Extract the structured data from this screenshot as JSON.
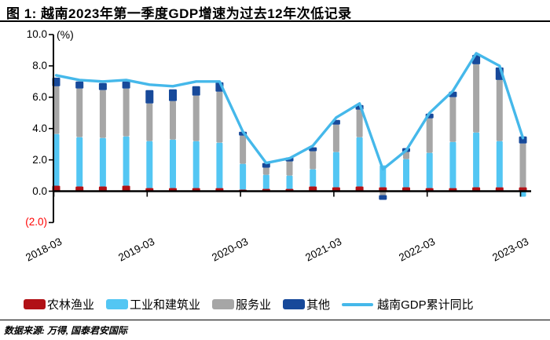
{
  "header": {
    "title": "图 1: 越南2023年第一季度GDP增速为过去12年次低记录"
  },
  "source": {
    "text": "数据来源: 万得, 国泰君安国际"
  },
  "chart_data": {
    "type": "bar",
    "subtype": "stacked-bars-with-overlay-line",
    "title": "图 1: 越南2023年第一季度GDP增速为过去12年次低记录",
    "unit_label": "(%)",
    "grid": false,
    "legend_position": "bottom",
    "ylim": [
      -2.0,
      10.0
    ],
    "categories": [
      "2018-03",
      "2018-06",
      "2018-09",
      "2018-12",
      "2019-03",
      "2019-06",
      "2019-09",
      "2019-12",
      "2020-03",
      "2020-06",
      "2020-09",
      "2020-12",
      "2021-03",
      "2021-06",
      "2021-09",
      "2021-12",
      "2022-03",
      "2022-06",
      "2022-09",
      "2022-12",
      "2023-03"
    ],
    "x_axis_tick_labels": [
      "2018-03",
      "2019-03",
      "2020-03",
      "2021-03",
      "2022-03",
      "2023-03"
    ],
    "x_axis_tick_indices": [
      0,
      4,
      8,
      12,
      16,
      20
    ],
    "yticks": [
      {
        "label": "10.0",
        "value": 10.0,
        "color": "#000000"
      },
      {
        "label": "8.0",
        "value": 8.0,
        "color": "#000000"
      },
      {
        "label": "6.0",
        "value": 6.0,
        "color": "#000000"
      },
      {
        "label": "4.0",
        "value": 4.0,
        "color": "#000000"
      },
      {
        "label": "2.0",
        "value": 2.0,
        "color": "#000000"
      },
      {
        "label": "0.0",
        "value": 0.0,
        "color": "#000000"
      },
      {
        "label": "(2.0)",
        "value": -2.0,
        "color": "#ff0000"
      }
    ],
    "stack_series": [
      {
        "name": "农林渔业",
        "color": "#b11116",
        "values": [
          0.35,
          0.3,
          0.3,
          0.35,
          0.2,
          0.2,
          0.2,
          0.2,
          0.1,
          0.15,
          0.15,
          0.3,
          0.25,
          0.3,
          0.25,
          0.25,
          0.2,
          0.2,
          0.25,
          0.25,
          0.25
        ]
      },
      {
        "name": "工业和建筑业",
        "color": "#53c6f3",
        "values": [
          3.3,
          3.15,
          3.1,
          3.15,
          3.0,
          3.1,
          3.0,
          2.9,
          1.65,
          0.9,
          0.85,
          1.1,
          2.25,
          3.15,
          1.4,
          1.8,
          2.25,
          2.95,
          3.5,
          2.95,
          -0.35
        ]
      },
      {
        "name": "服务业",
        "color": "#a6a6a6",
        "values": [
          3.05,
          3.1,
          3.05,
          3.05,
          2.4,
          2.45,
          2.9,
          3.25,
          1.8,
          0.45,
          0.9,
          1.15,
          1.75,
          1.75,
          -0.25,
          0.45,
          2.2,
          2.85,
          4.35,
          3.9,
          2.8
        ]
      },
      {
        "name": "其他",
        "color": "#17499a",
        "values": [
          0.55,
          0.45,
          0.45,
          0.45,
          0.85,
          0.75,
          0.6,
          0.6,
          0.25,
          0.3,
          0.25,
          0.25,
          0.3,
          0.3,
          -0.3,
          0.25,
          0.3,
          0.35,
          0.6,
          0.8,
          0.45
        ]
      }
    ],
    "line_series": {
      "name": "越南GDP累计同比",
      "color": "#45b8ea",
      "values": [
        7.4,
        7.1,
        7.0,
        7.1,
        6.8,
        6.7,
        7.0,
        7.0,
        3.8,
        1.8,
        2.1,
        2.9,
        4.7,
        5.6,
        1.4,
        2.6,
        5.0,
        6.4,
        8.8,
        8.0,
        3.4
      ]
    }
  }
}
